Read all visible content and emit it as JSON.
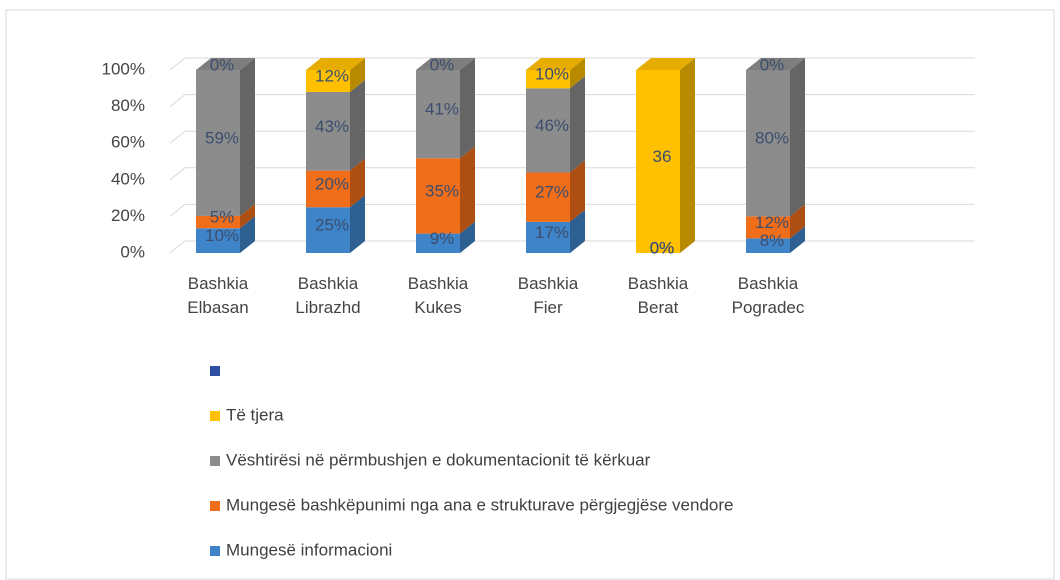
{
  "chart_data": {
    "type": "bar",
    "stack": "percent",
    "categories": [
      "Bashkia Elbasan",
      "Bashkia Librazhd",
      "Bashkia Kukes",
      "Bashkia Fier",
      "Bashkia Berat",
      "Bashkia Pogradec"
    ],
    "series": [
      {
        "name": "Mungesë informacioni",
        "color": "#3f84c8",
        "values": [
          10,
          25,
          9,
          17,
          0,
          8
        ],
        "value_labels": [
          "10%",
          "25%",
          "9%",
          "17%",
          "0%",
          "8%"
        ]
      },
      {
        "name": "Mungesë bashkëpunimi nga ana e strukturave përgjegjëse vendore",
        "color": "#f06e1a",
        "values": [
          5,
          20,
          35,
          27,
          0,
          12
        ],
        "value_labels": [
          "5%",
          "20%",
          "35%",
          "27%",
          "0%",
          "12%"
        ]
      },
      {
        "name": "Vështirësi në përmbushjen e dokumentacionit të kërkuar",
        "color": "#8c8c8c",
        "values": [
          59,
          43,
          41,
          46,
          0,
          80
        ],
        "value_labels": [
          "59%",
          "43%",
          "41%",
          "46%",
          "0%",
          "80%"
        ]
      },
      {
        "name": "Të tjera",
        "color": "#ffc000",
        "values": [
          0,
          12,
          0,
          10,
          36,
          0
        ],
        "value_labels": [
          "0%",
          "12%",
          "0%",
          "10%",
          "36",
          "0%"
        ]
      },
      {
        "name": null,
        "color": "#2e4fa3",
        "values": [
          null,
          null,
          null,
          null,
          null,
          null
        ]
      }
    ],
    "ylim": [
      0,
      100
    ],
    "yticks": [
      {
        "value": 0,
        "label": "0%"
      },
      {
        "value": 20,
        "label": "20%"
      },
      {
        "value": 40,
        "label": "40%"
      },
      {
        "value": 60,
        "label": "60%"
      },
      {
        "value": 80,
        "label": "80%"
      },
      {
        "value": 100,
        "label": "100%"
      }
    ],
    "grid": true,
    "legend": "bottom"
  }
}
